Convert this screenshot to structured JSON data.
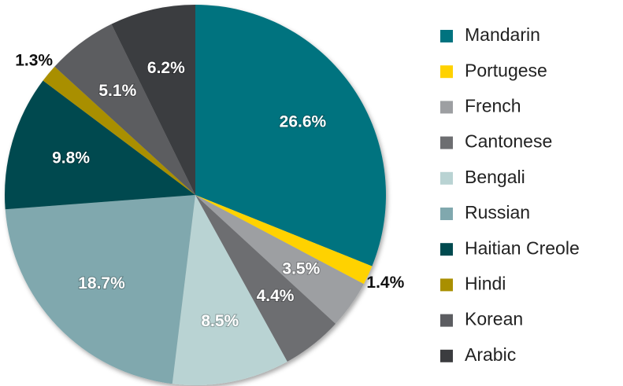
{
  "chart_data": {
    "type": "pie",
    "categories": [
      "Mandarin",
      "Portugese",
      "French",
      "Cantonese",
      "Bengali",
      "Russian",
      "Haitian Creole",
      "Hindi",
      "Korean",
      "Arabic"
    ],
    "values": [
      26.6,
      1.4,
      3.5,
      4.4,
      8.5,
      18.7,
      9.8,
      1.3,
      5.1,
      6.2
    ],
    "value_labels": [
      "26.6%",
      "1.4%",
      "3.5%",
      "4.4%",
      "8.5%",
      "18.7%",
      "9.8%",
      "1.3%",
      "5.1%",
      "6.2%"
    ],
    "colors": [
      "#00737f",
      "#ffd200",
      "#9d9fa2",
      "#6d6e71",
      "#b9d3d3",
      "#80a8ae",
      "#004a4f",
      "#a98f00",
      "#5c5d61",
      "#3b3c3f"
    ],
    "legend": "right"
  }
}
